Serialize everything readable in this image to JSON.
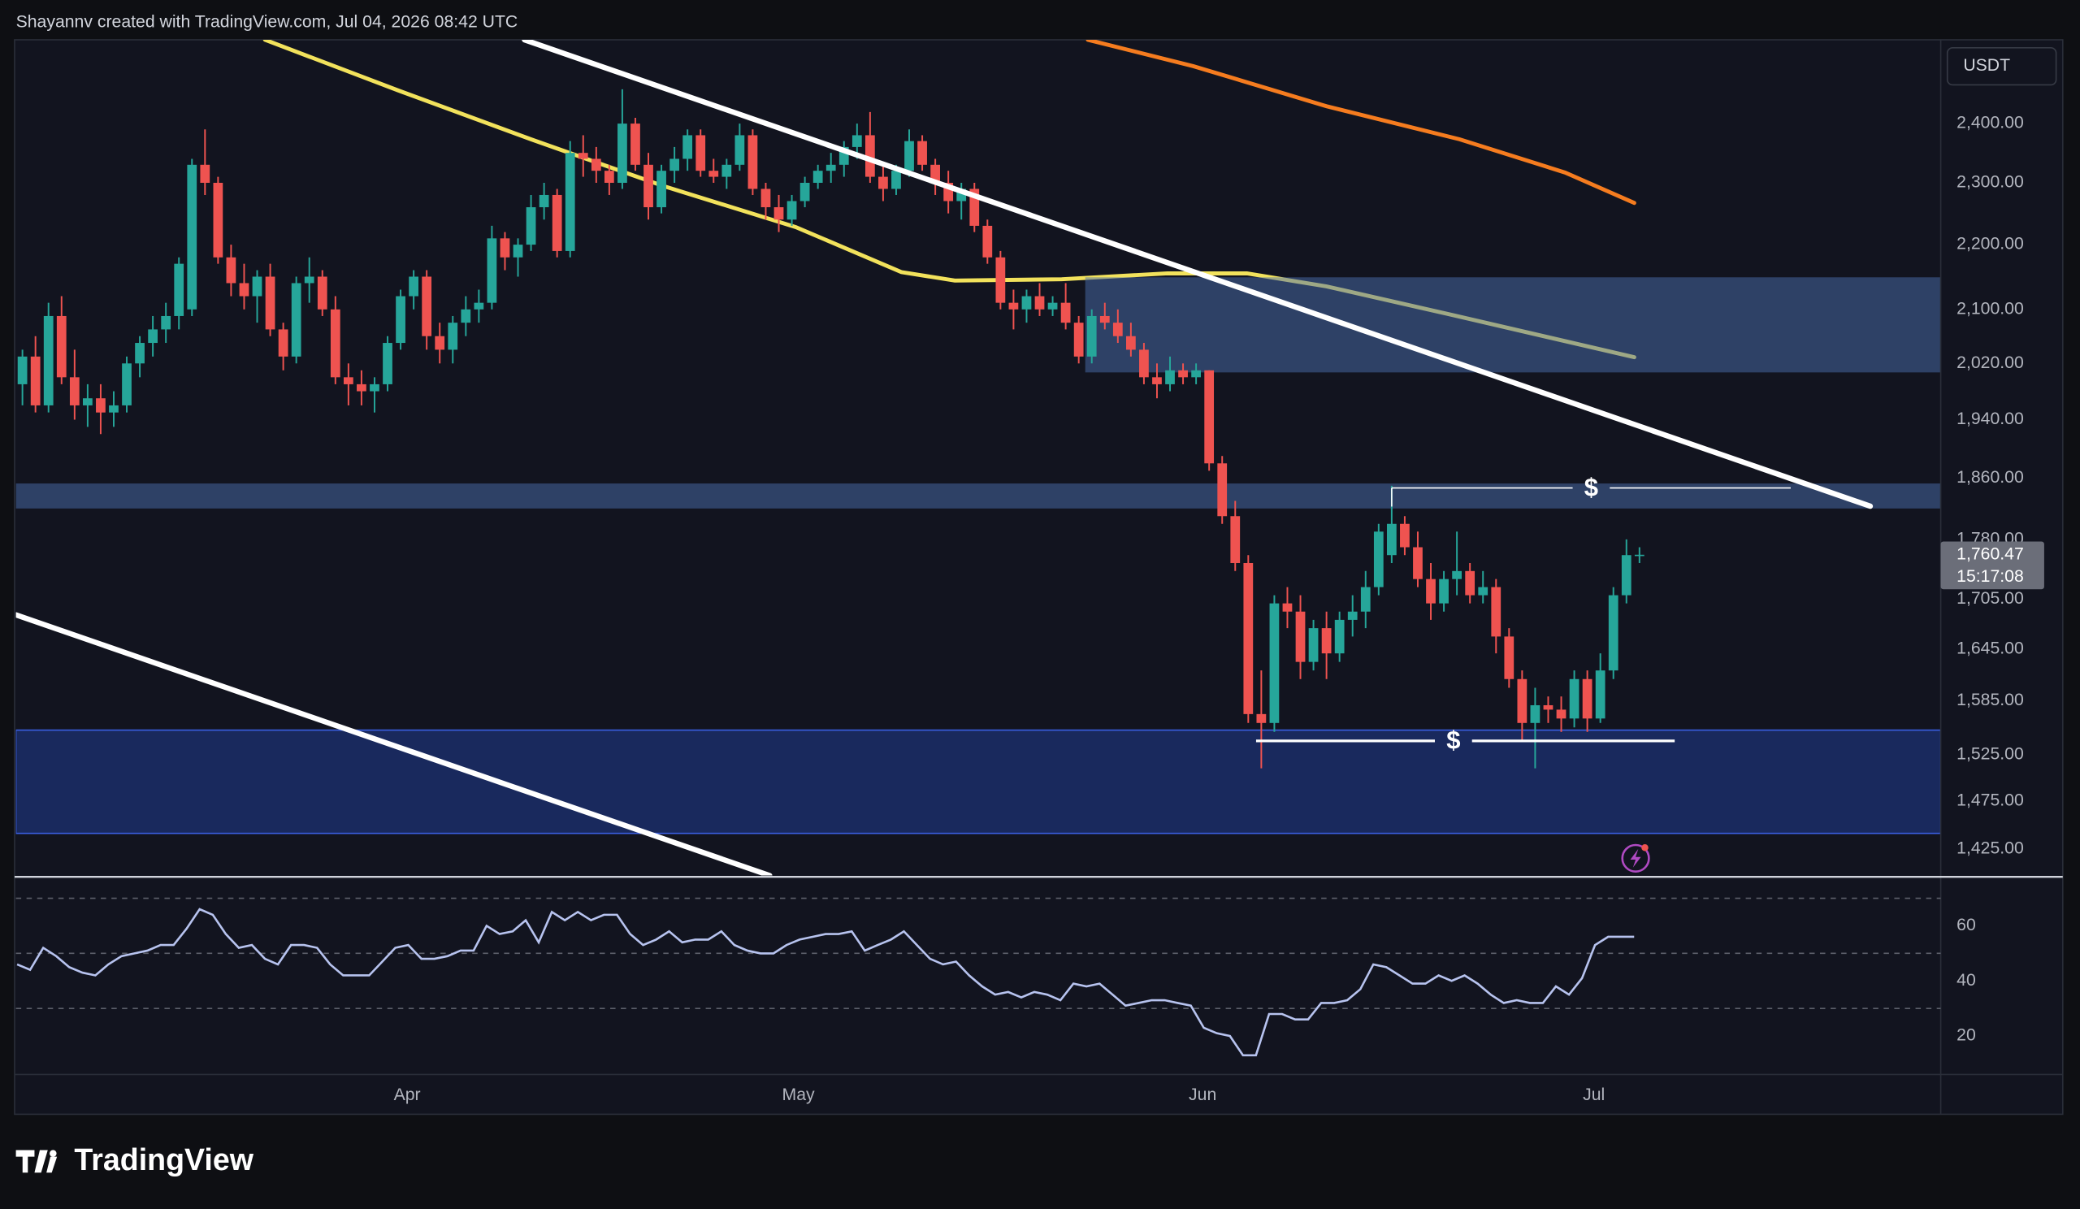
{
  "header": "Shayannv created with TradingView.com, Jul 04, 2026 08:42 UTC",
  "brand": "TradingView",
  "chart_data": {
    "type": "candlestick",
    "currency": "USDT",
    "log_scale": true,
    "up_color": "#26a69a",
    "down_color": "#ef5350",
    "xlim": [
      -0.5,
      147.1
    ],
    "ylim": [
      1398,
      2549
    ],
    "xticks": [
      {
        "value": 29.5,
        "label": "Apr"
      },
      {
        "value": 59.5,
        "label": "May"
      },
      {
        "value": 90.5,
        "label": "Jun"
      },
      {
        "value": 120.5,
        "label": "Jul"
      }
    ],
    "yticks": [
      {
        "value": 2400,
        "label": "2,400.00"
      },
      {
        "value": 2300,
        "label": "2,300.00"
      },
      {
        "value": 2200,
        "label": "2,200.00"
      },
      {
        "value": 2100,
        "label": "2,100.00"
      },
      {
        "value": 2020,
        "label": "2,020.00"
      },
      {
        "value": 1940,
        "label": "1,940.00"
      },
      {
        "value": 1860,
        "label": "1,860.00"
      },
      {
        "value": 1780,
        "label": "1,780.00"
      },
      {
        "value": 1705,
        "label": "1,705.00"
      },
      {
        "value": 1645,
        "label": "1,645.00"
      },
      {
        "value": 1585,
        "label": "1,585.00"
      },
      {
        "value": 1525,
        "label": "1,525.00"
      },
      {
        "value": 1475,
        "label": "1,475.00"
      },
      {
        "value": 1425,
        "label": "1,425.00"
      }
    ],
    "candles": [
      [
        1990,
        2040,
        1960,
        2030
      ],
      [
        2030,
        2060,
        1950,
        1960
      ],
      [
        1960,
        2110,
        1950,
        2090
      ],
      [
        2090,
        2120,
        1990,
        2000
      ],
      [
        2000,
        2040,
        1940,
        1960
      ],
      [
        1960,
        1990,
        1930,
        1970
      ],
      [
        1970,
        1990,
        1920,
        1950
      ],
      [
        1950,
        1980,
        1930,
        1960
      ],
      [
        1960,
        2030,
        1950,
        2020
      ],
      [
        2020,
        2060,
        2000,
        2050
      ],
      [
        2050,
        2090,
        2030,
        2070
      ],
      [
        2070,
        2110,
        2050,
        2090
      ],
      [
        2090,
        2180,
        2070,
        2170
      ],
      [
        2100,
        2340,
        2090,
        2330
      ],
      [
        2330,
        2390,
        2280,
        2300
      ],
      [
        2300,
        2310,
        2170,
        2180
      ],
      [
        2180,
        2200,
        2120,
        2140
      ],
      [
        2140,
        2170,
        2100,
        2120
      ],
      [
        2120,
        2160,
        2080,
        2150
      ],
      [
        2150,
        2170,
        2060,
        2070
      ],
      [
        2070,
        2080,
        2010,
        2030
      ],
      [
        2030,
        2150,
        2020,
        2140
      ],
      [
        2140,
        2180,
        2110,
        2150
      ],
      [
        2150,
        2160,
        2090,
        2100
      ],
      [
        2100,
        2120,
        1990,
        2000
      ],
      [
        2000,
        2020,
        1960,
        1990
      ],
      [
        1990,
        2010,
        1960,
        1980
      ],
      [
        1980,
        2000,
        1950,
        1990
      ],
      [
        1990,
        2060,
        1980,
        2050
      ],
      [
        2050,
        2130,
        2040,
        2120
      ],
      [
        2120,
        2160,
        2100,
        2150
      ],
      [
        2150,
        2160,
        2040,
        2060
      ],
      [
        2060,
        2080,
        2020,
        2040
      ],
      [
        2040,
        2090,
        2020,
        2080
      ],
      [
        2080,
        2120,
        2060,
        2100
      ],
      [
        2100,
        2130,
        2080,
        2110
      ],
      [
        2110,
        2230,
        2100,
        2210
      ],
      [
        2210,
        2220,
        2160,
        2180
      ],
      [
        2180,
        2210,
        2150,
        2200
      ],
      [
        2200,
        2280,
        2190,
        2260
      ],
      [
        2260,
        2300,
        2240,
        2280
      ],
      [
        2280,
        2290,
        2180,
        2190
      ],
      [
        2190,
        2370,
        2180,
        2350
      ],
      [
        2350,
        2380,
        2310,
        2340
      ],
      [
        2340,
        2360,
        2300,
        2320
      ],
      [
        2320,
        2330,
        2280,
        2300
      ],
      [
        2300,
        2460,
        2290,
        2400
      ],
      [
        2400,
        2410,
        2320,
        2330
      ],
      [
        2330,
        2350,
        2240,
        2260
      ],
      [
        2260,
        2330,
        2250,
        2320
      ],
      [
        2320,
        2360,
        2300,
        2340
      ],
      [
        2340,
        2390,
        2320,
        2380
      ],
      [
        2380,
        2390,
        2310,
        2320
      ],
      [
        2320,
        2340,
        2300,
        2310
      ],
      [
        2310,
        2340,
        2290,
        2330
      ],
      [
        2330,
        2400,
        2320,
        2380
      ],
      [
        2380,
        2390,
        2280,
        2290
      ],
      [
        2290,
        2300,
        2240,
        2260
      ],
      [
        2260,
        2280,
        2220,
        2240
      ],
      [
        2240,
        2280,
        2230,
        2270
      ],
      [
        2270,
        2310,
        2260,
        2300
      ],
      [
        2300,
        2330,
        2290,
        2320
      ],
      [
        2320,
        2350,
        2300,
        2330
      ],
      [
        2330,
        2370,
        2310,
        2360
      ],
      [
        2360,
        2400,
        2340,
        2380
      ],
      [
        2380,
        2420,
        2300,
        2310
      ],
      [
        2310,
        2330,
        2270,
        2290
      ],
      [
        2290,
        2330,
        2280,
        2320
      ],
      [
        2320,
        2390,
        2310,
        2370
      ],
      [
        2370,
        2380,
        2320,
        2330
      ],
      [
        2330,
        2340,
        2280,
        2300
      ],
      [
        2300,
        2320,
        2250,
        2270
      ],
      [
        2270,
        2300,
        2240,
        2290
      ],
      [
        2290,
        2300,
        2220,
        2230
      ],
      [
        2230,
        2240,
        2170,
        2180
      ],
      [
        2180,
        2190,
        2100,
        2110
      ],
      [
        2110,
        2130,
        2070,
        2100
      ],
      [
        2100,
        2130,
        2080,
        2120
      ],
      [
        2120,
        2140,
        2090,
        2100
      ],
      [
        2100,
        2120,
        2090,
        2110
      ],
      [
        2110,
        2140,
        2070,
        2080
      ],
      [
        2080,
        2090,
        2020,
        2030
      ],
      [
        2030,
        2100,
        2020,
        2090
      ],
      [
        2090,
        2110,
        2070,
        2080
      ],
      [
        2080,
        2100,
        2050,
        2060
      ],
      [
        2060,
        2080,
        2030,
        2040
      ],
      [
        2040,
        2050,
        1990,
        2000
      ],
      [
        2000,
        2020,
        1970,
        1990
      ],
      [
        1990,
        2030,
        1980,
        2010
      ],
      [
        2010,
        2020,
        1990,
        2000
      ],
      [
        2000,
        2020,
        1990,
        2010
      ],
      [
        2010,
        2010,
        1870,
        1880
      ],
      [
        1880,
        1890,
        1800,
        1810
      ],
      [
        1810,
        1830,
        1740,
        1750
      ],
      [
        1750,
        1760,
        1560,
        1570
      ],
      [
        1570,
        1620,
        1510,
        1560
      ],
      [
        1560,
        1710,
        1550,
        1700
      ],
      [
        1700,
        1720,
        1670,
        1690
      ],
      [
        1690,
        1710,
        1610,
        1630
      ],
      [
        1630,
        1680,
        1620,
        1670
      ],
      [
        1670,
        1690,
        1610,
        1640
      ],
      [
        1640,
        1690,
        1630,
        1680
      ],
      [
        1680,
        1710,
        1660,
        1690
      ],
      [
        1690,
        1740,
        1670,
        1720
      ],
      [
        1720,
        1800,
        1710,
        1790
      ],
      [
        1760,
        1850,
        1750,
        1800
      ],
      [
        1800,
        1810,
        1760,
        1770
      ],
      [
        1770,
        1790,
        1720,
        1730
      ],
      [
        1730,
        1750,
        1680,
        1700
      ],
      [
        1700,
        1740,
        1690,
        1730
      ],
      [
        1730,
        1790,
        1710,
        1740
      ],
      [
        1740,
        1750,
        1700,
        1710
      ],
      [
        1710,
        1740,
        1700,
        1720
      ],
      [
        1720,
        1730,
        1640,
        1660
      ],
      [
        1660,
        1670,
        1600,
        1610
      ],
      [
        1610,
        1620,
        1540,
        1560
      ],
      [
        1560,
        1600,
        1510,
        1580
      ],
      [
        1580,
        1590,
        1560,
        1575
      ],
      [
        1575,
        1590,
        1550,
        1565
      ],
      [
        1565,
        1620,
        1555,
        1610
      ],
      [
        1610,
        1620,
        1550,
        1565
      ],
      [
        1565,
        1640,
        1560,
        1620
      ],
      [
        1620,
        1720,
        1610,
        1710
      ],
      [
        1710,
        1780,
        1700,
        1760
      ],
      [
        1760,
        1770,
        1750,
        1760.47
      ]
    ],
    "last_price": {
      "value": 1760.47,
      "label": "1,760.47"
    },
    "countdown": "15:17:08",
    "moving_averages": [
      {
        "color": "#f2e25c",
        "x": [
          18.6,
          28.8,
          39.0,
          49.1,
          59.3,
          67.4,
          71.5,
          79.7,
          87.8,
          93.9,
          100.0,
          110.2,
          123.6
        ],
        "values": [
          2549,
          2458,
          2373,
          2295,
          2228,
          2157,
          2144,
          2146,
          2155,
          2155,
          2135,
          2089,
          2029
        ]
      },
      {
        "color": "#f57c1f",
        "x": [
          81.7,
          89.8,
          100.0,
          110.2,
          118.3,
          123.6
        ],
        "values": [
          2549,
          2501,
          2430,
          2373,
          2317,
          2267
        ]
      }
    ],
    "trend_lines": [
      {
        "color": "#ffffff",
        "x": [
          38.5,
          141.7
        ],
        "values": [
          2549,
          1823
        ]
      },
      {
        "color": "#ffffff",
        "x": [
          -0.5,
          57.3
        ],
        "values": [
          1686,
          1398
        ]
      }
    ],
    "zones": [
      {
        "color": "#4a6eae",
        "x": [
          81.5,
          147.1
        ],
        "values": [
          2149,
          2007
        ]
      },
      {
        "color": "#4a6eae",
        "x": [
          -0.5,
          147.1
        ],
        "values": [
          1853,
          1820
        ]
      },
      {
        "color": "#1f3a8f",
        "x": [
          -0.5,
          147.1
        ],
        "values": [
          1552,
          1441
        ]
      }
    ],
    "liquidity": [
      {
        "label": "$",
        "x": [
          105,
          135.6
        ],
        "value": 1847
      },
      {
        "label": "$",
        "x": [
          94.6,
          126.7
        ],
        "value": 1540
      }
    ],
    "rsi": {
      "color": "#b7c3ef",
      "ylim": [
        7,
        76.8
      ],
      "yticks": [
        60,
        40,
        20
      ],
      "levels": [
        70,
        50,
        30
      ],
      "values": [
        46,
        44,
        52,
        49,
        45,
        43,
        42,
        46,
        49,
        50,
        51,
        53,
        53,
        59,
        66,
        64,
        57,
        52,
        53,
        48,
        46,
        53,
        53,
        52,
        46,
        42,
        42,
        42,
        47,
        52,
        53,
        48,
        48,
        49,
        51,
        51,
        60,
        57,
        58,
        62,
        54,
        65,
        62,
        65,
        62,
        64,
        64,
        57,
        53,
        55,
        58,
        54,
        55,
        55,
        58,
        53,
        51,
        50,
        50,
        53,
        55,
        56,
        57,
        57,
        58,
        51,
        53,
        55,
        58,
        53,
        48,
        46,
        47,
        42,
        38,
        35,
        36,
        34,
        36,
        35,
        33,
        39,
        38,
        39,
        35,
        31,
        32,
        33,
        33,
        32,
        31,
        23,
        21,
        20,
        13,
        13,
        28,
        28,
        26,
        26,
        32,
        32,
        33,
        37,
        46,
        45,
        42,
        39,
        39,
        42,
        40,
        42,
        39,
        35,
        32,
        33,
        32,
        32,
        38,
        35,
        41,
        53,
        56,
        56,
        56
      ]
    }
  }
}
